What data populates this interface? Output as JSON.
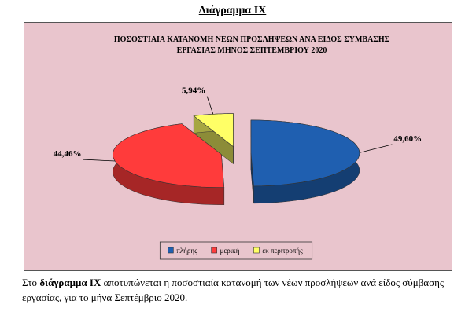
{
  "heading": "Διάγραμμα ΙΧ",
  "chart_data": {
    "type": "pie",
    "title": "ΠΟΣΟΣΤΙΑΙΑ ΚΑΤΑΝΟΜΗ ΝΕΩΝ ΠΡΟΣΛΗΨΕΩΝ ΑΝΑ ΕΙΔΟΣ ΣΥΜΒΑΣΗΣ ΕΡΓΑΣΙΑΣ ΜΗΝΟΣ ΣΕΠΤΕΜΒΡΙΟΥ 2020",
    "categories": [
      "πλήρης",
      "μερική",
      "εκ περιτροπής"
    ],
    "values": [
      49.6,
      44.46,
      5.94
    ],
    "value_labels": [
      "49,60%",
      "44,46%",
      "5,94%"
    ],
    "colors": [
      "#1f5fb0",
      "#ff3b3b",
      "#ffff66"
    ],
    "legend": "bottom"
  },
  "caption": {
    "before": "Στο",
    "bold": "διάγραμμα ΙΧ",
    "after": "αποτυπώνεται η ποσοστιαία κατανομή των νέων προσλήψεων ανά είδος σύμβασης εργασίας,  για το μήνα Σεπτέμβριο 2020."
  }
}
